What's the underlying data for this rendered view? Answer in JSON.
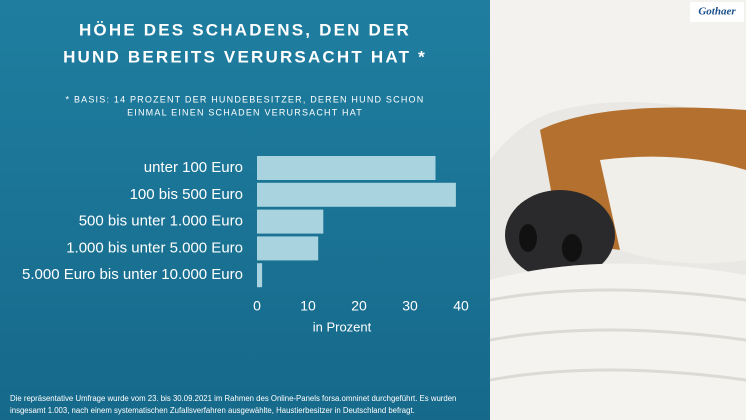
{
  "chart_data": {
    "type": "barh",
    "title": [
      "HÖHE DES SCHADENS, DEN DER",
      "HUND BEREITS VERURSACHT HAT *"
    ],
    "subtitle": [
      "* BASIS: 14 PROZENT DER HUNDEBESITZER, DEREN HUND SCHON",
      "EINMAL EINEN SCHADEN VERURSACHT HAT"
    ],
    "categories": [
      "unter 100 Euro",
      "100 bis 500 Euro",
      "500 bis unter 1.000 Euro",
      "1.000 bis unter 5.000 Euro",
      "5.000 Euro bis unter 10.000 Euro"
    ],
    "values": [
      35,
      39,
      13,
      12,
      1
    ],
    "color": "#a8d3df",
    "xlim": [
      0,
      40
    ],
    "xticks": [
      0,
      10,
      20,
      30,
      40
    ],
    "xlabel": "in Prozent",
    "footnote": [
      "Die repräsentative Umfrage wurde vom 23. bis 30.09.2021 im Rahmen des Online-Panels forsa.omninet durchgeführt. Es wurden",
      "insgesamt 1.003, nach einem systematischen Zufallsverfahren ausgewählte, Haustierbesitzer in Deutschland befragt."
    ],
    "brand": "Gothaer"
  }
}
